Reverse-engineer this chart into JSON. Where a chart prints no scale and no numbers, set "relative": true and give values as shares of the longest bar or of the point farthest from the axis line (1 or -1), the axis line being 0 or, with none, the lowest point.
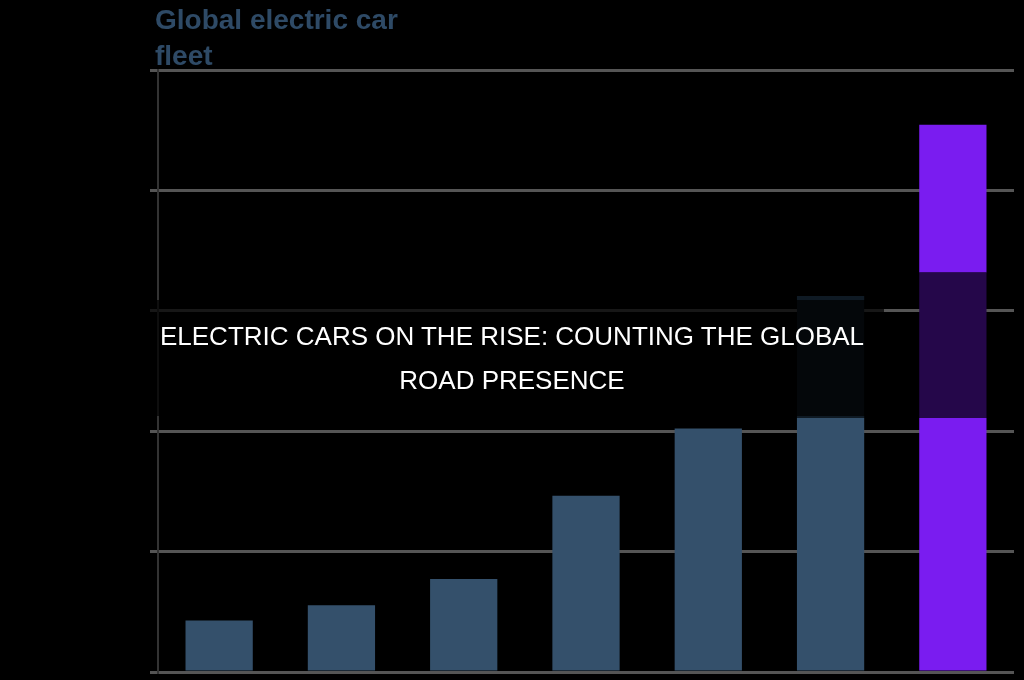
{
  "chart_data": {
    "type": "bar",
    "title": "ELECTRIC CARS ON THE RISE: COUNTING THE GLOBAL ROAD PRESENCE",
    "subtitle": "Global electric car fleet",
    "relative": true,
    "stacked": true,
    "grid": "y",
    "tick_labels": false,
    "categories": [
      null,
      null,
      null,
      null,
      null,
      null,
      null
    ],
    "series": [
      {
        "colors": [
          "#34506b",
          "#34506b",
          "#34506b",
          "#34506b",
          "#34506b",
          "#34506b",
          "#7a1cf0"
        ],
        "values": [
          0.094,
          0.122,
          0.17,
          0.322,
          0.445,
          0.464,
          0.464
        ]
      },
      {
        "colors": [
          "#0f1a24",
          "#0f1a24",
          "#0f1a24",
          "#0f1a24",
          "#0f1a24",
          "#0f1a24",
          "#25074a"
        ],
        "values": [
          null,
          null,
          null,
          null,
          null,
          0.223,
          0.266
        ]
      },
      {
        "colors": [
          "#7a1cf0",
          "#7a1cf0",
          "#7a1cf0",
          "#7a1cf0",
          "#7a1cf0",
          "#7a1cf0",
          "#7a1cf0"
        ],
        "values": [
          null,
          null,
          null,
          null,
          null,
          null,
          0.27
        ]
      }
    ]
  }
}
